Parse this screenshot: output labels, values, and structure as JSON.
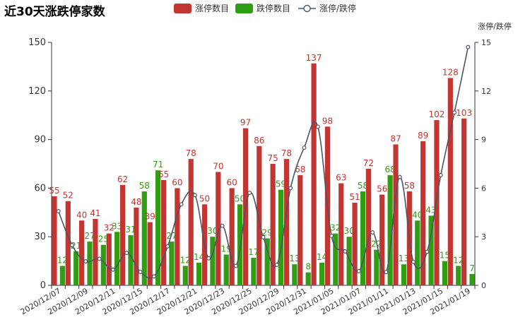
{
  "chart_data": {
    "type": "bar",
    "title": "近30天涨跌停家数",
    "right_axis_name": "涨停/跌停",
    "categories": [
      "2020/12/07",
      "2020/12/08",
      "2020/12/09",
      "2020/12/10",
      "2020/12/11",
      "2020/12/14",
      "2020/12/15",
      "2020/12/16",
      "2020/12/17",
      "2020/12/18",
      "2020/12/21",
      "2020/12/22",
      "2020/12/23",
      "2020/12/24",
      "2020/12/25",
      "2020/12/28",
      "2020/12/29",
      "2020/12/30",
      "2020/12/31",
      "2021/01/04",
      "2021/01/05",
      "2021/01/06",
      "2021/01/07",
      "2021/01/08",
      "2021/01/11",
      "2021/01/12",
      "2021/01/13",
      "2021/01/14",
      "2021/01/15",
      "2021/01/18",
      "2021/01/19"
    ],
    "visible_x_labels": [
      "2020/12/07",
      "2020/12/09",
      "2020/12/11",
      "2020/12/15",
      "2020/12/17",
      "2020/12/21",
      "2020/12/23",
      "2020/12/25",
      "2020/12/29",
      "2020/12/31",
      "2021/01/05",
      "2021/01/07",
      "2021/01/11",
      "2021/01/13",
      "2021/01/15",
      "2021/01/19"
    ],
    "series": [
      {
        "name": "涨停数目",
        "type": "bar",
        "color": "#c23531",
        "values": [
          55,
          52,
          40,
          41,
          32,
          62,
          48,
          39,
          65,
          60,
          78,
          50,
          70,
          60,
          97,
          86,
          75,
          78,
          68,
          137,
          98,
          63,
          51,
          72,
          56,
          87,
          58,
          89,
          102,
          128,
          103
        ]
      },
      {
        "name": "跌停数目",
        "type": "bar",
        "color": "#2f9e12",
        "values": [
          12,
          21,
          27,
          25,
          33,
          31,
          58,
          71,
          27,
          12,
          14,
          30,
          19,
          50,
          17,
          29,
          59,
          13,
          8,
          14,
          32,
          30,
          58,
          22,
          68,
          13,
          40,
          43,
          15,
          12,
          7
        ]
      },
      {
        "name": "涨停/跌停",
        "type": "line",
        "color": "#4a5568",
        "axis": "right",
        "values": [
          4.58,
          2.48,
          1.48,
          1.64,
          0.97,
          2.0,
          0.83,
          0.55,
          2.41,
          5.0,
          5.57,
          1.67,
          3.68,
          1.2,
          5.71,
          2.97,
          1.27,
          6.0,
          8.5,
          9.79,
          3.06,
          2.1,
          0.88,
          3.27,
          0.82,
          6.69,
          1.45,
          2.07,
          6.8,
          10.67,
          14.71
        ]
      }
    ],
    "ylim_left": [
      0,
      150
    ],
    "yticks_left": [
      0,
      30,
      60,
      90,
      120,
      150
    ],
    "ylim_right": [
      0,
      15
    ],
    "yticks_right": [
      0,
      3,
      6,
      9,
      12,
      15
    ],
    "legend_position": "top-center",
    "grid": false
  }
}
